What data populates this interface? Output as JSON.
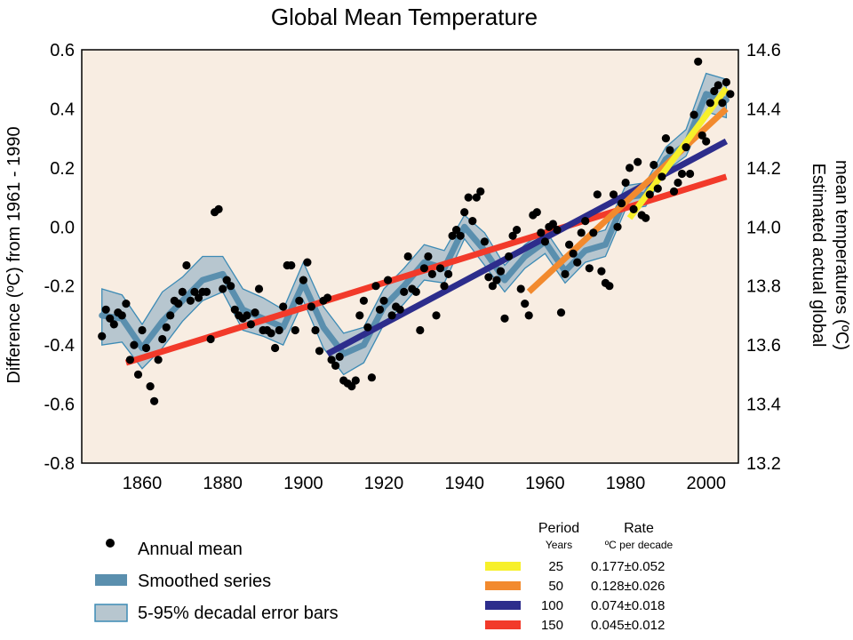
{
  "chart_data": {
    "type": "scatter",
    "title": "Global Mean Temperature",
    "ylabel": "Difference (ºC) from 1961 - 1990",
    "y2label_line1": "Estimated actual global",
    "y2label_line2": "mean temperatures (ºC)",
    "xlim": [
      1845,
      2008
    ],
    "ylim": [
      -0.8,
      0.6
    ],
    "y2lim": [
      13.2,
      14.6
    ],
    "xticks": [
      "1860",
      "1880",
      "1900",
      "1920",
      "1940",
      "1960",
      "1980",
      "2000"
    ],
    "yticks": [
      "0.6",
      "0.4",
      "0.2",
      "0.0",
      "-0.2",
      "-0.4",
      "-0.6",
      "-0.8"
    ],
    "y2ticks": [
      "14.6",
      "14.4",
      "14.2",
      "14.0",
      "13.8",
      "13.6",
      "13.4",
      "13.2"
    ],
    "background_color": "#f8ede2",
    "annual_mean": {
      "name": "Annual mean",
      "x": [
        1850,
        1851,
        1852,
        1853,
        1854,
        1855,
        1856,
        1857,
        1858,
        1859,
        1860,
        1861,
        1862,
        1863,
        1864,
        1865,
        1866,
        1867,
        1868,
        1869,
        1870,
        1871,
        1872,
        1873,
        1874,
        1875,
        1876,
        1877,
        1878,
        1879,
        1880,
        1881,
        1882,
        1883,
        1884,
        1885,
        1886,
        1887,
        1888,
        1889,
        1890,
        1891,
        1892,
        1893,
        1894,
        1895,
        1896,
        1897,
        1898,
        1899,
        1900,
        1901,
        1902,
        1903,
        1904,
        1905,
        1906,
        1907,
        1908,
        1909,
        1910,
        1911,
        1912,
        1913,
        1914,
        1915,
        1916,
        1917,
        1918,
        1919,
        1920,
        1921,
        1922,
        1923,
        1924,
        1925,
        1926,
        1927,
        1928,
        1929,
        1930,
        1931,
        1932,
        1933,
        1934,
        1935,
        1936,
        1937,
        1938,
        1939,
        1940,
        1941,
        1942,
        1943,
        1944,
        1945,
        1946,
        1947,
        1948,
        1949,
        1950,
        1951,
        1952,
        1953,
        1954,
        1955,
        1956,
        1957,
        1958,
        1959,
        1960,
        1961,
        1962,
        1963,
        1964,
        1965,
        1966,
        1967,
        1968,
        1969,
        1970,
        1971,
        1972,
        1973,
        1974,
        1975,
        1976,
        1977,
        1978,
        1979,
        1980,
        1981,
        1982,
        1983,
        1984,
        1985,
        1986,
        1987,
        1988,
        1989,
        1990,
        1991,
        1992,
        1993,
        1994,
        1995,
        1996,
        1997,
        1998,
        1999,
        2000,
        2001,
        2002,
        2003,
        2004,
        2005,
        2006
      ],
      "y": [
        -0.37,
        -0.28,
        -0.31,
        -0.33,
        -0.29,
        -0.3,
        -0.26,
        -0.45,
        -0.4,
        -0.5,
        -0.35,
        -0.41,
        -0.54,
        -0.59,
        -0.45,
        -0.38,
        -0.34,
        -0.3,
        -0.25,
        -0.26,
        -0.22,
        -0.13,
        -0.25,
        -0.22,
        -0.24,
        -0.22,
        -0.22,
        -0.38,
        0.05,
        0.06,
        -0.21,
        -0.18,
        -0.2,
        -0.28,
        -0.3,
        -0.31,
        -0.3,
        -0.33,
        -0.29,
        -0.21,
        -0.35,
        -0.35,
        -0.36,
        -0.41,
        -0.35,
        -0.27,
        -0.13,
        -0.13,
        -0.35,
        -0.25,
        -0.18,
        -0.12,
        -0.27,
        -0.35,
        -0.42,
        -0.25,
        -0.24,
        -0.45,
        -0.47,
        -0.44,
        -0.52,
        -0.53,
        -0.54,
        -0.52,
        -0.3,
        -0.25,
        -0.34,
        -0.51,
        -0.2,
        -0.28,
        -0.25,
        -0.18,
        -0.3,
        -0.27,
        -0.28,
        -0.22,
        -0.1,
        -0.21,
        -0.22,
        -0.35,
        -0.14,
        -0.1,
        -0.16,
        -0.3,
        -0.14,
        -0.2,
        -0.16,
        -0.03,
        -0.01,
        -0.03,
        0.05,
        0.1,
        0.02,
        0.1,
        0.12,
        -0.05,
        -0.17,
        -0.2,
        -0.18,
        -0.15,
        -0.31,
        -0.1,
        -0.03,
        -0.01,
        -0.21,
        -0.26,
        -0.3,
        0.04,
        0.05,
        -0.02,
        -0.05,
        0.0,
        0.01,
        -0.01,
        -0.29,
        -0.16,
        -0.06,
        -0.09,
        -0.12,
        -0.02,
        0.02,
        -0.14,
        -0.02,
        0.11,
        -0.15,
        -0.19,
        -0.2,
        0.11,
        0.0,
        0.08,
        0.15,
        0.2,
        0.06,
        0.22,
        0.04,
        0.03,
        0.11,
        0.21,
        0.13,
        0.17,
        0.3,
        0.26,
        0.12,
        0.15,
        0.18,
        0.27,
        0.18,
        0.38,
        0.56,
        0.31,
        0.29,
        0.42,
        0.46,
        0.48,
        0.42,
        0.49,
        0.45
      ]
    },
    "smoothed": {
      "name": "Smoothed series",
      "x": [
        1850,
        1855,
        1860,
        1865,
        1870,
        1875,
        1880,
        1885,
        1890,
        1895,
        1900,
        1905,
        1910,
        1915,
        1920,
        1925,
        1930,
        1935,
        1940,
        1945,
        1950,
        1955,
        1960,
        1965,
        1970,
        1975,
        1980,
        1985,
        1990,
        1995,
        2000,
        2005
      ],
      "y": [
        -0.3,
        -0.31,
        -0.41,
        -0.32,
        -0.25,
        -0.18,
        -0.16,
        -0.28,
        -0.31,
        -0.34,
        -0.19,
        -0.34,
        -0.43,
        -0.4,
        -0.27,
        -0.2,
        -0.12,
        -0.14,
        0.0,
        -0.08,
        -0.18,
        -0.1,
        -0.05,
        -0.15,
        -0.08,
        -0.06,
        0.1,
        0.11,
        0.23,
        0.28,
        0.45,
        0.43
      ],
      "error_lower": [
        -0.4,
        -0.39,
        -0.48,
        -0.41,
        -0.32,
        -0.25,
        -0.22,
        -0.35,
        -0.37,
        -0.4,
        -0.25,
        -0.41,
        -0.5,
        -0.46,
        -0.33,
        -0.26,
        -0.18,
        -0.19,
        -0.04,
        -0.13,
        -0.22,
        -0.14,
        -0.09,
        -0.19,
        -0.12,
        -0.1,
        0.06,
        0.07,
        0.19,
        0.24,
        0.39,
        0.37
      ],
      "error_upper": [
        -0.21,
        -0.23,
        -0.33,
        -0.22,
        -0.17,
        -0.1,
        -0.1,
        -0.21,
        -0.24,
        -0.28,
        -0.12,
        -0.27,
        -0.36,
        -0.34,
        -0.21,
        -0.14,
        -0.06,
        -0.08,
        0.04,
        -0.02,
        -0.13,
        -0.06,
        -0.01,
        -0.11,
        -0.03,
        -0.01,
        0.14,
        0.15,
        0.27,
        0.33,
        0.52,
        0.5
      ]
    },
    "error_bars_name": "5-95% decadal error bars",
    "trend_lines": [
      {
        "period": "25",
        "rate": "0.177±0.052",
        "color": "#f7f02a",
        "x": [
          1981,
          2005
        ],
        "y": [
          0.03,
          0.47
        ]
      },
      {
        "period": "50",
        "rate": "0.128±0.026",
        "color": "#f28a2e",
        "x": [
          1956,
          2005
        ],
        "y": [
          -0.22,
          0.4
        ]
      },
      {
        "period": "100",
        "rate": "0.074±0.018",
        "color": "#2d2d8c",
        "x": [
          1906,
          2005
        ],
        "y": [
          -0.43,
          0.29
        ]
      },
      {
        "period": "150",
        "rate": "0.045±0.012",
        "color": "#f23a2a",
        "x": [
          1856,
          2005
        ],
        "y": [
          -0.46,
          0.17
        ]
      }
    ],
    "rate_table": {
      "period_header": "Period",
      "period_sub": "Years",
      "rate_header": "Rate",
      "rate_sub": "ºC  per decade"
    },
    "colors": {
      "smoothed_line": "#5a8fae",
      "error_band_fill": "#b7c6cf",
      "error_band_stroke": "#3d8bb5",
      "dot": "#000000"
    }
  }
}
